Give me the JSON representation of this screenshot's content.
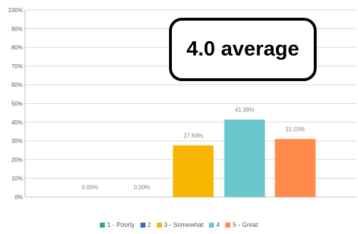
{
  "chart_data": {
    "type": "bar",
    "categories": [
      "1 - Poorly",
      "2",
      "3 - Somewhat",
      "4",
      "5 - Great"
    ],
    "values": [
      0.0,
      0.0,
      27.59,
      41.38,
      31.03
    ],
    "data_labels": [
      "0.00%",
      "0.00%",
      "27.59%",
      "41.38%",
      "31.03%"
    ],
    "colors": [
      "#1fb36b",
      "#3e6bb0",
      "#f8b600",
      "#67c7cd",
      "#ff8a4a"
    ],
    "yticks": [
      "0%",
      "10%",
      "20%",
      "30%",
      "40%",
      "50%",
      "60%",
      "70%",
      "80%",
      "90%",
      "100%"
    ],
    "ylim": [
      0,
      100
    ],
    "grid": true,
    "legend_position": "bottom",
    "annotation": "4.0 average"
  }
}
